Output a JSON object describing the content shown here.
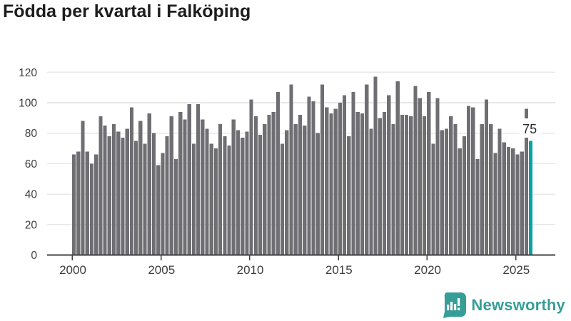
{
  "title": "Födda per kvartal i Falköping",
  "branding": {
    "name": "Newsworthy"
  },
  "colors": {
    "bar": "#6e6e73",
    "highlight": "#0aa2a0",
    "gridline": "#e8e8e8",
    "axis": "#404040",
    "tick_label": "#3d3d3d",
    "title_text": "#1d1d1d",
    "annotation_text": "#2a2a2a",
    "logo": "#379e97"
  },
  "chart_data": {
    "type": "bar",
    "title": "Födda per kvartal i Falköping",
    "xlabel": "",
    "ylabel": "",
    "frequency": "quarterly",
    "x_start": "2000 Q1",
    "x_end": "2025 Q4",
    "x_tick_labels": [
      "2000",
      "2005",
      "2010",
      "2015",
      "2020",
      "2025"
    ],
    "y_ticks": [
      0,
      20,
      40,
      60,
      80,
      100,
      120
    ],
    "ylim": [
      0,
      120
    ],
    "grid": "horizontal",
    "legend": "none",
    "highlight": {
      "category": "2025 Q4",
      "value": 75,
      "label": "75"
    },
    "series_by_year": [
      {
        "year": 2000,
        "quarters": [
          66,
          68,
          88,
          68
        ]
      },
      {
        "year": 2001,
        "quarters": [
          60,
          66,
          91,
          85
        ]
      },
      {
        "year": 2002,
        "quarters": [
          78,
          86,
          81,
          77
        ]
      },
      {
        "year": 2003,
        "quarters": [
          83,
          97,
          75,
          88
        ]
      },
      {
        "year": 2004,
        "quarters": [
          73,
          93,
          80,
          59
        ]
      },
      {
        "year": 2005,
        "quarters": [
          67,
          78,
          91,
          63
        ]
      },
      {
        "year": 2006,
        "quarters": [
          94,
          89,
          99,
          73
        ]
      },
      {
        "year": 2007,
        "quarters": [
          99,
          89,
          83,
          73
        ]
      },
      {
        "year": 2008,
        "quarters": [
          70,
          86,
          78,
          72
        ]
      },
      {
        "year": 2009,
        "quarters": [
          89,
          82,
          77,
          81
        ]
      },
      {
        "year": 2010,
        "quarters": [
          102,
          91,
          79,
          86
        ]
      },
      {
        "year": 2011,
        "quarters": [
          92,
          94,
          107,
          73
        ]
      },
      {
        "year": 2012,
        "quarters": [
          82,
          112,
          86,
          92
        ]
      },
      {
        "year": 2013,
        "quarters": [
          85,
          104,
          101,
          80
        ]
      },
      {
        "year": 2014,
        "quarters": [
          112,
          97,
          93,
          96
        ]
      },
      {
        "year": 2015,
        "quarters": [
          100,
          105,
          78,
          107
        ]
      },
      {
        "year": 2016,
        "quarters": [
          94,
          93,
          112,
          83
        ]
      },
      {
        "year": 2017,
        "quarters": [
          117,
          90,
          94,
          105
        ]
      },
      {
        "year": 2018,
        "quarters": [
          86,
          114,
          92,
          92
        ]
      },
      {
        "year": 2019,
        "quarters": [
          91,
          111,
          103,
          91
        ]
      },
      {
        "year": 2020,
        "quarters": [
          107,
          73,
          103,
          82
        ]
      },
      {
        "year": 2021,
        "quarters": [
          83,
          91,
          86,
          70
        ]
      },
      {
        "year": 2022,
        "quarters": [
          78,
          98,
          97,
          63
        ]
      },
      {
        "year": 2023,
        "quarters": [
          86,
          102,
          86,
          67
        ]
      },
      {
        "year": 2024,
        "quarters": [
          83,
          74,
          71,
          70
        ]
      },
      {
        "year": 2025,
        "quarters": [
          66,
          68,
          96,
          75
        ]
      }
    ]
  }
}
